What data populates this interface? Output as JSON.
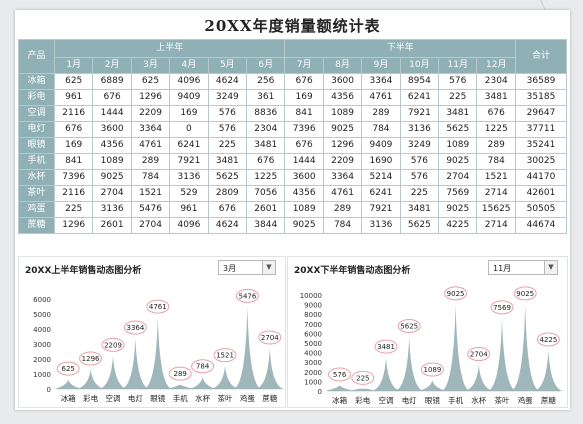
{
  "title": "20XX年度销量额统计表",
  "table": {
    "product_header": "产品",
    "h1_label": "上半年",
    "h2_label": "下半年",
    "total_header": "合计",
    "months": [
      "1月",
      "2月",
      "3月",
      "4月",
      "5月",
      "6月",
      "7月",
      "8月",
      "9月",
      "10月",
      "11月",
      "12月"
    ],
    "rows": [
      {
        "name": "冰箱",
        "values": [
          625,
          6889,
          625,
          4096,
          4624,
          256,
          676,
          3600,
          3364,
          8954,
          576,
          2304
        ],
        "total": 36589
      },
      {
        "name": "彩电",
        "values": [
          961,
          676,
          1296,
          9409,
          3249,
          361,
          169,
          4356,
          4761,
          6241,
          225,
          3481
        ],
        "total": 35185
      },
      {
        "name": "空调",
        "values": [
          2116,
          1444,
          2209,
          169,
          576,
          8836,
          841,
          1089,
          289,
          7921,
          3481,
          676
        ],
        "total": 29647
      },
      {
        "name": "电灯",
        "values": [
          676,
          3600,
          3364,
          0,
          576,
          2304,
          7396,
          9025,
          784,
          3136,
          5625,
          1225
        ],
        "total": 37711
      },
      {
        "name": "眼镜",
        "values": [
          169,
          4356,
          4761,
          6241,
          225,
          3481,
          676,
          1296,
          9409,
          3249,
          1089,
          289
        ],
        "total": 35241
      },
      {
        "name": "手机",
        "values": [
          841,
          1089,
          289,
          7921,
          3481,
          676,
          1444,
          2209,
          1690,
          576,
          9025,
          784
        ],
        "total": 30025
      },
      {
        "name": "水杯",
        "values": [
          7396,
          9025,
          784,
          3136,
          5625,
          1225,
          3600,
          3364,
          5214,
          576,
          2704,
          1521
        ],
        "total": 44170
      },
      {
        "name": "茶叶",
        "values": [
          2116,
          2704,
          1521,
          529,
          2809,
          7056,
          4356,
          4761,
          6241,
          225,
          7569,
          2714
        ],
        "total": 42601
      },
      {
        "name": "鸡蛋",
        "values": [
          225,
          3136,
          5476,
          961,
          676,
          2601,
          1089,
          289,
          7921,
          3481,
          9025,
          15625
        ],
        "total": 50505
      },
      {
        "name": "蔗糖",
        "values": [
          1296,
          2601,
          2704,
          4096,
          4624,
          3844,
          9025,
          784,
          3136,
          5625,
          4225,
          2714
        ],
        "total": 44674
      }
    ]
  },
  "chart_data": [
    {
      "type": "area",
      "title": "20XX上半年销售动态图分析",
      "selector_value": "3月",
      "categories": [
        "冰箱",
        "彩电",
        "空调",
        "电灯",
        "眼镜",
        "手机",
        "水杯",
        "茶叶",
        "鸡蛋",
        "蔗糖"
      ],
      "values": [
        625,
        1296,
        2209,
        3364,
        4761,
        289,
        784,
        1521,
        5476,
        2704
      ],
      "y_ticks": [
        0,
        1000,
        2000,
        3000,
        4000,
        5000,
        6000
      ],
      "ylim": [
        0,
        6000
      ],
      "color": "#9ab2b6",
      "label_border_color": "#e8a0a6"
    },
    {
      "type": "area",
      "title": "20XX下半年销售动态图分析",
      "selector_value": "11月",
      "categories": [
        "冰箱",
        "彩电",
        "空调",
        "电灯",
        "眼镜",
        "手机",
        "水杯",
        "茶叶",
        "鸡蛋",
        "蔗糖"
      ],
      "values": [
        576,
        225,
        3481,
        5625,
        1089,
        9025,
        2704,
        7569,
        9025,
        4225
      ],
      "y_ticks": [
        0,
        1000,
        2000,
        3000,
        4000,
        5000,
        6000,
        7000,
        8000,
        9000,
        10000
      ],
      "ylim": [
        0,
        10000
      ],
      "color": "#9ab2b6",
      "label_border_color": "#e8a0a6"
    }
  ]
}
